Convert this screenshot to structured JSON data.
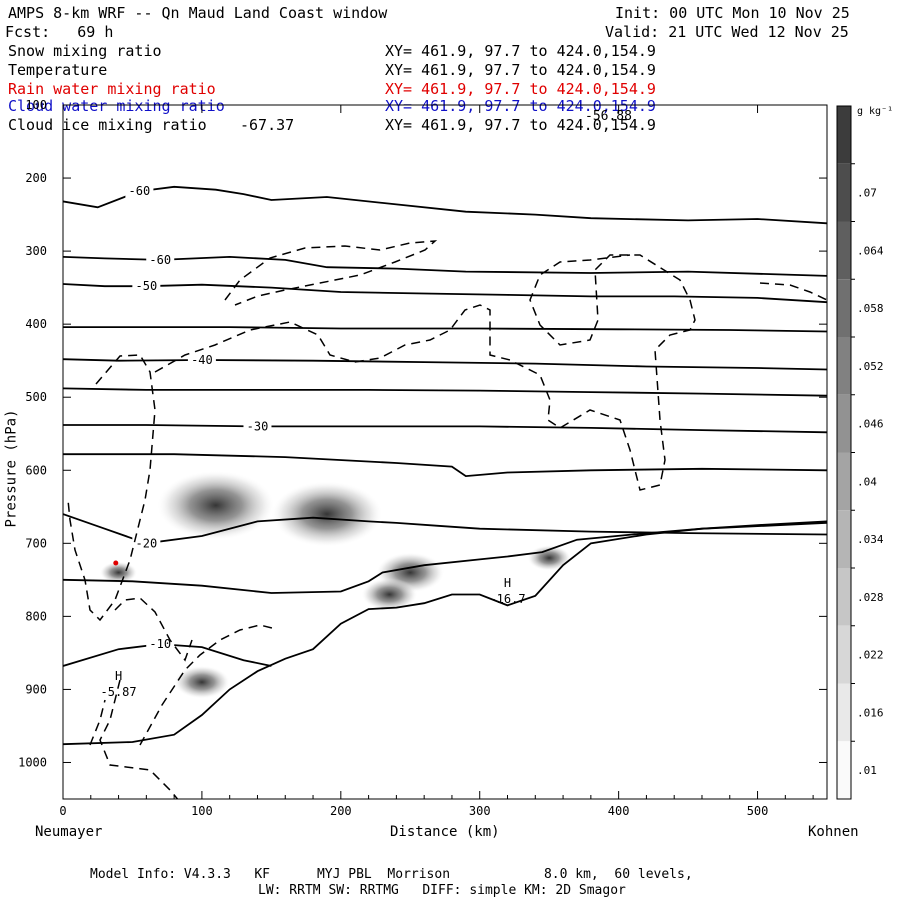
{
  "header": {
    "title": "AMPS 8-km WRF -- Qn Maud Land Coast window",
    "forecast": "Fcst:   69 h",
    "init": "Init: 00 UTC Mon 10 Nov 25",
    "valid": "Valid: 21 UTC Wed 12 Nov 25"
  },
  "fields": [
    {
      "name": "Snow mixing ratio",
      "xy": "XY= 461.9, 97.7 to 424.0,154.9",
      "color": "#000000"
    },
    {
      "name": "Temperature",
      "xy": "XY= 461.9, 97.7 to 424.0,154.9",
      "color": "#000000"
    },
    {
      "name": "Rain water mixing ratio",
      "xy": "XY= 461.9, 97.7 to 424.0,154.9",
      "color": "#e00000"
    },
    {
      "name": "Cloud water mixing ratio",
      "xy": "XY= 461.9, 97.7 to 424.0,154.9",
      "color": "#1010c8"
    },
    {
      "name": "Cloud ice mixing ratio",
      "xy": "XY= 461.9, 97.7 to 424.0,154.9",
      "color": "#000000",
      "extra": "-67.37"
    }
  ],
  "overlap_label": "-56.88",
  "footer": {
    "line1": "Model Info: V4.3.3   KF      MYJ PBL  Morrison            8.0 km,  60 levels,",
    "line2": "LW: RRTM SW: RRTMG   DIFF: simple KM: 2D Smagor"
  },
  "chart_data": {
    "type": "contour",
    "xlabel": "Distance (km)",
    "ylabel": "Pressure (hPa)",
    "x_start_label": "Neumayer",
    "x_end_label": "Kohnen",
    "xlim": [
      0,
      550
    ],
    "ylim": [
      1050,
      100
    ],
    "x_ticks": [
      0,
      100,
      200,
      300,
      400,
      500
    ],
    "y_ticks": [
      100,
      200,
      300,
      400,
      500,
      600,
      700,
      800,
      900,
      1000
    ],
    "colorbar": {
      "unit": "g kg⁻¹",
      "ticks": [
        ".07",
        ".064",
        ".058",
        ".052",
        ".046",
        ".04",
        ".034",
        ".028",
        ".022",
        ".016",
        ".01"
      ]
    },
    "temperature_contours": [
      {
        "label": "-60",
        "points": [
          [
            0,
            232
          ],
          [
            25,
            240
          ],
          [
            55,
            218
          ],
          [
            80,
            212
          ],
          [
            110,
            216
          ],
          [
            130,
            222
          ],
          [
            150,
            230
          ],
          [
            190,
            226
          ],
          [
            240,
            236
          ],
          [
            290,
            246
          ],
          [
            340,
            250
          ],
          [
            380,
            255
          ],
          [
            450,
            258
          ],
          [
            500,
            256
          ],
          [
            550,
            262
          ]
        ]
      },
      {
        "label": "-60",
        "points": [
          [
            0,
            308
          ],
          [
            30,
            310
          ],
          [
            70,
            312
          ],
          [
            120,
            308
          ],
          [
            160,
            312
          ],
          [
            190,
            322
          ],
          [
            240,
            324
          ],
          [
            290,
            328
          ],
          [
            380,
            330
          ],
          [
            450,
            328
          ],
          [
            550,
            334
          ]
        ]
      },
      {
        "label": "-50",
        "points": [
          [
            0,
            345
          ],
          [
            30,
            348
          ],
          [
            60,
            348
          ],
          [
            100,
            346
          ],
          [
            150,
            350
          ],
          [
            200,
            356
          ],
          [
            260,
            358
          ],
          [
            320,
            360
          ],
          [
            380,
            362
          ],
          [
            440,
            362
          ],
          [
            500,
            364
          ],
          [
            550,
            370
          ]
        ]
      },
      {
        "label": "",
        "points": [
          [
            0,
            404
          ],
          [
            60,
            404
          ],
          [
            120,
            404
          ],
          [
            200,
            406
          ],
          [
            300,
            406
          ],
          [
            400,
            407
          ],
          [
            480,
            408
          ],
          [
            550,
            410
          ]
        ]
      },
      {
        "label": "-40",
        "points": [
          [
            0,
            448
          ],
          [
            40,
            450
          ],
          [
            100,
            449
          ],
          [
            180,
            450
          ],
          [
            260,
            452
          ],
          [
            340,
            454
          ],
          [
            420,
            458
          ],
          [
            500,
            460
          ],
          [
            550,
            462
          ]
        ]
      },
      {
        "label": "",
        "points": [
          [
            0,
            488
          ],
          [
            60,
            490
          ],
          [
            140,
            490
          ],
          [
            220,
            490
          ],
          [
            300,
            491
          ],
          [
            380,
            493
          ],
          [
            460,
            495
          ],
          [
            550,
            498
          ]
        ]
      },
      {
        "label": "-30",
        "points": [
          [
            0,
            538
          ],
          [
            60,
            538
          ],
          [
            140,
            540
          ],
          [
            230,
            540
          ],
          [
            300,
            540
          ],
          [
            380,
            542
          ],
          [
            460,
            545
          ],
          [
            550,
            548
          ]
        ]
      },
      {
        "label": "",
        "points": [
          [
            0,
            578
          ],
          [
            80,
            578
          ],
          [
            160,
            582
          ],
          [
            240,
            590
          ],
          [
            280,
            595
          ],
          [
            290,
            608
          ],
          [
            320,
            603
          ],
          [
            380,
            600
          ],
          [
            460,
            598
          ],
          [
            550,
            600
          ]
        ]
      },
      {
        "label": "-20",
        "points": [
          [
            0,
            660
          ],
          [
            30,
            680
          ],
          [
            60,
            700
          ],
          [
            100,
            690
          ],
          [
            140,
            670
          ],
          [
            180,
            665
          ],
          [
            220,
            670
          ],
          [
            240,
            672
          ],
          [
            270,
            676
          ],
          [
            300,
            680
          ],
          [
            380,
            684
          ],
          [
            450,
            686
          ],
          [
            550,
            688
          ]
        ]
      },
      {
        "label": "",
        "points": [
          [
            0,
            750
          ],
          [
            50,
            752
          ],
          [
            100,
            758
          ],
          [
            150,
            768
          ],
          [
            200,
            766
          ],
          [
            220,
            752
          ],
          [
            230,
            740
          ],
          [
            260,
            730
          ],
          [
            300,
            722
          ],
          [
            320,
            718
          ],
          [
            345,
            712
          ],
          [
            370,
            695
          ],
          [
            410,
            688
          ],
          [
            460,
            680
          ],
          [
            550,
            672
          ]
        ]
      },
      {
        "label": "-10",
        "points": [
          [
            0,
            868
          ],
          [
            40,
            845
          ],
          [
            70,
            838
          ],
          [
            100,
            842
          ],
          [
            130,
            860
          ],
          [
            150,
            868
          ]
        ]
      }
    ],
    "terrain": [
      [
        0,
        975
      ],
      [
        50,
        972
      ],
      [
        80,
        962
      ],
      [
        100,
        935
      ],
      [
        120,
        900
      ],
      [
        140,
        875
      ],
      [
        160,
        858
      ],
      [
        180,
        845
      ],
      [
        200,
        810
      ],
      [
        220,
        790
      ],
      [
        240,
        788
      ],
      [
        260,
        782
      ],
      [
        280,
        770
      ],
      [
        300,
        770
      ],
      [
        320,
        785
      ],
      [
        340,
        772
      ],
      [
        360,
        730
      ],
      [
        380,
        700
      ],
      [
        420,
        688
      ],
      [
        460,
        680
      ],
      [
        500,
        675
      ],
      [
        550,
        670
      ]
    ],
    "high_markers": [
      {
        "label": "H",
        "value": "-5.87",
        "x": 40,
        "p": 895
      },
      {
        "label": "H",
        "value": "-16.7",
        "x": 320,
        "p": 768
      }
    ],
    "snow_maxima": [
      {
        "x": 110,
        "p": 648,
        "r": 38
      },
      {
        "x": 190,
        "p": 660,
        "r": 36
      },
      {
        "x": 250,
        "p": 740,
        "r": 22
      },
      {
        "x": 235,
        "p": 770,
        "r": 18
      },
      {
        "x": 350,
        "p": 720,
        "r": 14
      },
      {
        "x": 100,
        "p": 890,
        "r": 18
      },
      {
        "x": 40,
        "p": 740,
        "r": 12
      }
    ]
  }
}
